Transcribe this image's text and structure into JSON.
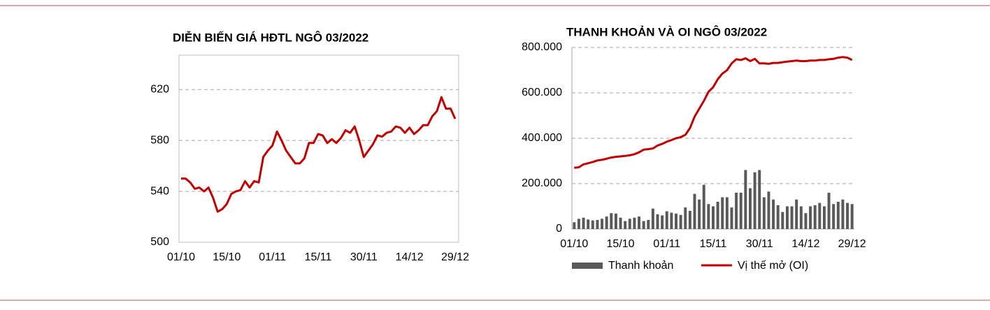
{
  "chart_data": [
    {
      "type": "line",
      "title": "DIỄN BIẾN GIÁ HĐTL NGÔ 03/2022",
      "color": "#c00000",
      "grid": true,
      "ylim": [
        500,
        647
      ],
      "yticks": [
        500,
        540,
        580,
        620
      ],
      "categories": [
        "01/10",
        null,
        null,
        null,
        null,
        null,
        null,
        null,
        null,
        null,
        "15/10",
        null,
        null,
        null,
        null,
        null,
        null,
        null,
        null,
        null,
        "01/11",
        null,
        null,
        null,
        null,
        null,
        null,
        null,
        null,
        null,
        "15/11",
        null,
        null,
        null,
        null,
        null,
        null,
        null,
        null,
        null,
        "30/11",
        null,
        null,
        null,
        null,
        null,
        null,
        null,
        null,
        null,
        "14/12",
        null,
        null,
        null,
        null,
        null,
        null,
        null,
        null,
        null,
        "29/12"
      ],
      "values": [
        550,
        550,
        547,
        542,
        543,
        540,
        543,
        535,
        524,
        526,
        530,
        538,
        540,
        541,
        548,
        543,
        548,
        547,
        567,
        572,
        576,
        587,
        580,
        572,
        567,
        562,
        562,
        566,
        578,
        578,
        585,
        584,
        578,
        581,
        578,
        582,
        588,
        586,
        591,
        580,
        567,
        572,
        577,
        584,
        583,
        586,
        587,
        591,
        590,
        586,
        590,
        585,
        588,
        592,
        592,
        599,
        603,
        614,
        605,
        605,
        597
      ]
    },
    {
      "type": "combo",
      "title": "THANH KHOẢN VÀ OI NGÔ 03/2022",
      "grid": true,
      "legend": "bottom",
      "ylim": [
        0,
        800000
      ],
      "yticks": [
        0,
        {
          "value": 200000,
          "label": "200.000"
        },
        {
          "value": 400000,
          "label": "400.000"
        },
        {
          "value": 600000,
          "label": "600.000"
        },
        {
          "value": 800000,
          "label": "800.000"
        }
      ],
      "categories": [
        "01/10",
        null,
        null,
        null,
        null,
        null,
        null,
        null,
        null,
        null,
        "15/10",
        null,
        null,
        null,
        null,
        null,
        null,
        null,
        null,
        null,
        "01/11",
        null,
        null,
        null,
        null,
        null,
        null,
        null,
        null,
        null,
        "15/11",
        null,
        null,
        null,
        null,
        null,
        null,
        null,
        null,
        null,
        "30/11",
        null,
        null,
        null,
        null,
        null,
        null,
        null,
        null,
        null,
        "14/12",
        null,
        null,
        null,
        null,
        null,
        null,
        null,
        null,
        null,
        "29/12"
      ],
      "series": [
        {
          "name": "Thanh khoản",
          "type": "bar",
          "color": "#595959",
          "values": [
            30000,
            45000,
            50000,
            42000,
            38000,
            40000,
            45000,
            55000,
            70000,
            68000,
            50000,
            35000,
            45000,
            50000,
            55000,
            35000,
            40000,
            90000,
            65000,
            60000,
            78000,
            72000,
            68000,
            62000,
            95000,
            80000,
            155000,
            130000,
            195000,
            110000,
            100000,
            120000,
            140000,
            140000,
            95000,
            160000,
            160000,
            260000,
            180000,
            250000,
            260000,
            140000,
            165000,
            130000,
            105000,
            75000,
            100000,
            100000,
            130000,
            100000,
            70000,
            100000,
            105000,
            115000,
            100000,
            160000,
            110000,
            120000,
            130000,
            115000,
            110000
          ]
        },
        {
          "name": "Vị thế mở (OI)",
          "type": "line",
          "color": "#c00000",
          "values": [
            270000,
            272000,
            285000,
            290000,
            295000,
            302000,
            305000,
            310000,
            315000,
            318000,
            320000,
            322000,
            325000,
            330000,
            338000,
            350000,
            352000,
            355000,
            368000,
            375000,
            385000,
            392000,
            400000,
            405000,
            415000,
            445000,
            495000,
            530000,
            565000,
            605000,
            625000,
            660000,
            685000,
            700000,
            730000,
            748000,
            745000,
            752000,
            740000,
            750000,
            730000,
            730000,
            728000,
            732000,
            732000,
            735000,
            738000,
            740000,
            742000,
            740000,
            740000,
            742000,
            742000,
            745000,
            745000,
            748000,
            750000,
            755000,
            758000,
            755000,
            745000
          ]
        }
      ]
    }
  ]
}
